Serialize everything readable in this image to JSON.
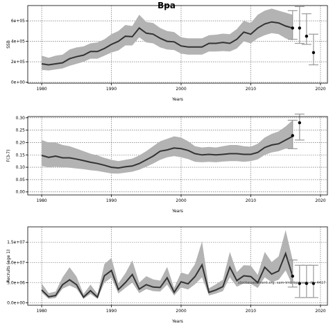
{
  "figure": {
    "title": "Bpa"
  },
  "chart_data": [
    {
      "type": "line",
      "title": "Bpa",
      "xlabel": "Years",
      "ylabel": "SSB",
      "xlim": [
        1978,
        2021
      ],
      "ylim": [
        -10000,
        750000
      ],
      "grid": true,
      "x_ticks": [
        1980,
        1990,
        2000,
        2010,
        2020
      ],
      "x_tick_labels": [
        "1980",
        "1990",
        "2000",
        "2010",
        "2020"
      ],
      "y_ticks": [
        0,
        200000,
        400000,
        600000
      ],
      "y_tick_labels": [
        "0e+00",
        "2e+05",
        "4e+05",
        "6e+05"
      ],
      "series": [
        {
          "x": [
            1980,
            1981,
            1982,
            1983,
            1984,
            1985,
            1986,
            1987,
            1988,
            1989,
            1990,
            1991,
            1992,
            1993,
            1994,
            1995,
            1996,
            1997,
            1998,
            1999,
            2000,
            2001,
            2002,
            2003,
            2004,
            2005,
            2006,
            2007,
            2008,
            2009,
            2010,
            2011,
            2012,
            2013,
            2014,
            2015,
            2016
          ],
          "values": [
            180000,
            170000,
            180000,
            190000,
            230000,
            250000,
            265000,
            300000,
            300000,
            330000,
            370000,
            400000,
            450000,
            445000,
            530000,
            480000,
            470000,
            430000,
            400000,
            395000,
            355000,
            345000,
            345000,
            345000,
            380000,
            380000,
            390000,
            380000,
            420000,
            490000,
            470000,
            530000,
            570000,
            590000,
            580000,
            550000,
            530000
          ]
        }
      ],
      "band": {
        "x": [
          1980,
          1981,
          1982,
          1983,
          1984,
          1985,
          1986,
          1987,
          1988,
          1989,
          1990,
          1991,
          1992,
          1993,
          1994,
          1995,
          1996,
          1997,
          1998,
          1999,
          2000,
          2001,
          2002,
          2003,
          2004,
          2005,
          2006,
          2007,
          2008,
          2009,
          2010,
          2011,
          2012,
          2013,
          2014,
          2015,
          2016
        ],
        "lower": [
          120000,
          115000,
          125000,
          135000,
          160000,
          180000,
          200000,
          230000,
          230000,
          260000,
          290000,
          310000,
          360000,
          360000,
          440000,
          390000,
          380000,
          340000,
          320000,
          315000,
          280000,
          270000,
          270000,
          270000,
          300000,
          300000,
          305000,
          300000,
          330000,
          400000,
          380000,
          430000,
          460000,
          480000,
          470000,
          430000,
          410000
        ],
        "upper": [
          260000,
          240000,
          260000,
          270000,
          320000,
          340000,
          350000,
          380000,
          390000,
          420000,
          470000,
          500000,
          560000,
          550000,
          660000,
          590000,
          580000,
          530000,
          500000,
          490000,
          440000,
          430000,
          430000,
          430000,
          460000,
          465000,
          475000,
          470000,
          520000,
          600000,
          580000,
          660000,
          700000,
          720000,
          700000,
          680000,
          660000
        ]
      },
      "forecast": {
        "x": [
          2016,
          2017,
          2018,
          2019
        ],
        "values": [
          530000,
          530000,
          450000,
          290000
        ],
        "lower": [
          420000,
          380000,
          370000,
          170000
        ],
        "upper": [
          700000,
          740000,
          670000,
          470000
        ]
      }
    },
    {
      "type": "line",
      "title": "",
      "xlabel": "Years",
      "ylabel": "F(3-7)",
      "xlim": [
        1978,
        2021
      ],
      "ylim": [
        -0.012,
        0.305
      ],
      "grid": true,
      "x_ticks": [
        1980,
        1990,
        2000,
        2010,
        2020
      ],
      "x_tick_labels": [
        "1980",
        "1990",
        "2000",
        "2010",
        "2020"
      ],
      "y_ticks": [
        0,
        0.05,
        0.1,
        0.15,
        0.2,
        0.25,
        0.3
      ],
      "y_tick_labels": [
        "0.00",
        "0.05",
        "0.10",
        "0.15",
        "0.20",
        "0.25",
        "0.30"
      ],
      "series": [
        {
          "x": [
            1980,
            1981,
            1982,
            1983,
            1984,
            1985,
            1986,
            1987,
            1988,
            1989,
            1990,
            1991,
            1992,
            1993,
            1994,
            1995,
            1996,
            1997,
            1998,
            1999,
            2000,
            2001,
            2002,
            2003,
            2004,
            2005,
            2006,
            2007,
            2008,
            2009,
            2010,
            2011,
            2012,
            2013,
            2014,
            2015,
            2016
          ],
          "values": [
            0.148,
            0.14,
            0.145,
            0.138,
            0.138,
            0.133,
            0.127,
            0.12,
            0.115,
            0.108,
            0.1,
            0.097,
            0.102,
            0.105,
            0.115,
            0.13,
            0.145,
            0.165,
            0.17,
            0.178,
            0.175,
            0.168,
            0.155,
            0.15,
            0.152,
            0.15,
            0.152,
            0.155,
            0.155,
            0.152,
            0.152,
            0.16,
            0.18,
            0.19,
            0.195,
            0.21,
            0.225
          ]
        }
      ],
      "band": {
        "x": [
          1980,
          1981,
          1982,
          1983,
          1984,
          1985,
          1986,
          1987,
          1988,
          1989,
          1990,
          1991,
          1992,
          1993,
          1994,
          1995,
          1996,
          1997,
          1998,
          1999,
          2000,
          2001,
          2002,
          2003,
          2004,
          2005,
          2006,
          2007,
          2008,
          2009,
          2010,
          2011,
          2012,
          2013,
          2014,
          2015,
          2016
        ],
        "lower": [
          0.105,
          0.1,
          0.102,
          0.1,
          0.098,
          0.095,
          0.092,
          0.088,
          0.085,
          0.08,
          0.075,
          0.074,
          0.078,
          0.082,
          0.09,
          0.102,
          0.115,
          0.13,
          0.14,
          0.145,
          0.14,
          0.133,
          0.122,
          0.12,
          0.122,
          0.12,
          0.123,
          0.125,
          0.125,
          0.122,
          0.125,
          0.132,
          0.15,
          0.16,
          0.165,
          0.175,
          0.175
        ],
        "upper": [
          0.21,
          0.2,
          0.2,
          0.19,
          0.185,
          0.175,
          0.165,
          0.155,
          0.148,
          0.138,
          0.13,
          0.125,
          0.13,
          0.135,
          0.148,
          0.165,
          0.185,
          0.205,
          0.215,
          0.225,
          0.22,
          0.205,
          0.185,
          0.18,
          0.182,
          0.18,
          0.185,
          0.19,
          0.19,
          0.185,
          0.183,
          0.195,
          0.22,
          0.235,
          0.245,
          0.265,
          0.29
        ]
      },
      "forecast": {
        "x": [
          2016,
          2017
        ],
        "values": [
          0.228,
          0.28
        ],
        "lower": [
          0.175,
          0.21
        ],
        "upper": [
          0.29,
          0.315
        ]
      }
    },
    {
      "type": "line",
      "title": "",
      "xlabel": "Years",
      "ylabel": "Recruits (age 1)",
      "xlim": [
        1978,
        2021
      ],
      "ylim": [
        -600000,
        18800000
      ],
      "grid": true,
      "x_ticks": [
        1980,
        1990,
        2000,
        2010,
        2020
      ],
      "x_tick_labels": [
        "1980",
        "1990",
        "2000",
        "2010",
        "2020"
      ],
      "y_ticks": [
        0,
        5000000,
        10000000,
        15000000
      ],
      "y_tick_labels": [
        "0.0e+00",
        "5.0e+06",
        "1.0e+07",
        "1.5e+07"
      ],
      "series": [
        {
          "x": [
            1980,
            1981,
            1982,
            1983,
            1984,
            1985,
            1986,
            1987,
            1988,
            1989,
            1990,
            1991,
            1992,
            1993,
            1994,
            1995,
            1996,
            1997,
            1998,
            1999,
            2000,
            2001,
            2002,
            2003,
            2004,
            2005,
            2006,
            2007,
            2008,
            2009,
            2010,
            2011,
            2012,
            2013,
            2014,
            2015,
            2016
          ],
          "values": [
            3200000,
            1500000,
            1800000,
            4500000,
            5700000,
            4500000,
            1400000,
            3000000,
            1400000,
            6700000,
            8000000,
            3300000,
            5000000,
            7000000,
            3400000,
            4500000,
            3900000,
            3800000,
            6200000,
            2600000,
            5200000,
            4700000,
            6500000,
            9400000,
            2600000,
            3200000,
            4000000,
            8800000,
            5500000,
            6700000,
            6500000,
            5000000,
            8800000,
            7100000,
            7900000,
            12200000,
            6600000
          ]
        }
      ],
      "band": {
        "x": [
          1980,
          1981,
          1982,
          1983,
          1984,
          1985,
          1986,
          1987,
          1988,
          1989,
          1990,
          1991,
          1992,
          1993,
          1994,
          1995,
          1996,
          1997,
          1998,
          1999,
          2000,
          2001,
          2002,
          2003,
          2004,
          2005,
          2006,
          2007,
          2008,
          2009,
          2010,
          2011,
          2012,
          2013,
          2014,
          2015,
          2016
        ],
        "lower": [
          2500000,
          1000000,
          1200000,
          3500000,
          4300000,
          3500000,
          1000000,
          2200000,
          1000000,
          5000000,
          6200000,
          2300000,
          3700000,
          5000000,
          2400000,
          3400000,
          2900000,
          2800000,
          4500000,
          1800000,
          3800000,
          3300000,
          4600000,
          6300000,
          1800000,
          2300000,
          2900000,
          6300000,
          4000000,
          4800000,
          4700000,
          3700000,
          6300000,
          5100000,
          5700000,
          8000000,
          4300000
        ],
        "upper": [
          4800000,
          2400000,
          2800000,
          6300000,
          8800000,
          6500000,
          2200000,
          4500000,
          2200000,
          9600000,
          11100000,
          4800000,
          7300000,
          10500000,
          5000000,
          6600000,
          5800000,
          5500000,
          8900000,
          3700000,
          7500000,
          7000000,
          9600000,
          15200000,
          3600000,
          4600000,
          5700000,
          12600000,
          7600000,
          9300000,
          9200000,
          6900000,
          12600000,
          10100000,
          11500000,
          18000000,
          10600000
        ]
      },
      "forecast": {
        "x": [
          2016,
          2017,
          2018,
          2019
        ],
        "values": [
          6600000,
          4800000,
          4800000,
          4800000
        ],
        "lower": [
          3900000,
          1300000,
          1300000,
          1300000
        ],
        "upper": [
          10600000,
          9300000,
          9300000,
          9300000
        ]
      }
    }
  ],
  "watermark": "stockassessment.org: sam-tmb-bpa-sam-rbv-4417"
}
